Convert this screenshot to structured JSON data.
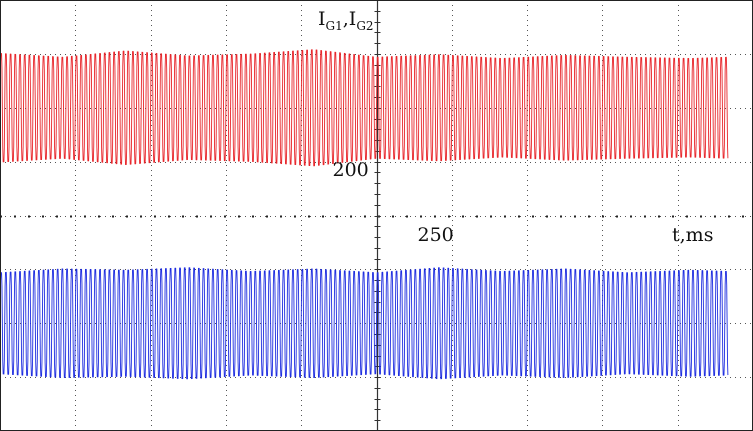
{
  "chart_data": {
    "type": "line",
    "title": "",
    "ylabel": {
      "main": "I",
      "sub1": "G1",
      "sep": ",",
      "main2": "I",
      "sub2": "G2"
    },
    "xlabel": "t,ms",
    "x_range": [
      160,
      280
    ],
    "y_range": [
      -2.6,
      2.6
    ],
    "x_tick_labels": [
      {
        "text": "200",
        "value": 200
      },
      {
        "text": "250",
        "value": 250
      }
    ],
    "grid": true,
    "series": [
      {
        "color": "#e8262b",
        "oscillation_period_ms": 0.75,
        "center": 1.3,
        "amplitude": 0.85,
        "amplitude_modulation": [
          {
            "t": 160,
            "a": 0.86
          },
          {
            "t": 170,
            "a": 0.8
          },
          {
            "t": 180,
            "a": 0.9
          },
          {
            "t": 190,
            "a": 0.82
          },
          {
            "t": 200,
            "a": 0.85
          },
          {
            "t": 210,
            "a": 0.92
          },
          {
            "t": 220,
            "a": 0.8
          },
          {
            "t": 230,
            "a": 0.84
          },
          {
            "t": 240,
            "a": 0.78
          },
          {
            "t": 250,
            "a": 0.83
          },
          {
            "t": 260,
            "a": 0.8
          },
          {
            "t": 270,
            "a": 0.78
          },
          {
            "t": 276,
            "a": 0.8
          }
        ],
        "x_end": 276
      },
      {
        "color": "#1f2ee0",
        "oscillation_period_ms": 0.75,
        "center": -1.3,
        "amplitude": 0.85,
        "amplitude_modulation": [
          {
            "t": 160,
            "a": 0.8
          },
          {
            "t": 170,
            "a": 0.86
          },
          {
            "t": 180,
            "a": 0.84
          },
          {
            "t": 190,
            "a": 0.88
          },
          {
            "t": 200,
            "a": 0.82
          },
          {
            "t": 210,
            "a": 0.86
          },
          {
            "t": 220,
            "a": 0.8
          },
          {
            "t": 230,
            "a": 0.88
          },
          {
            "t": 240,
            "a": 0.82
          },
          {
            "t": 250,
            "a": 0.86
          },
          {
            "t": 260,
            "a": 0.8
          },
          {
            "t": 270,
            "a": 0.84
          },
          {
            "t": 276,
            "a": 0.82
          }
        ],
        "x_end": 276
      }
    ],
    "colors": {
      "background": "#ffffff",
      "grid": "#555555",
      "border": "#222222"
    }
  }
}
